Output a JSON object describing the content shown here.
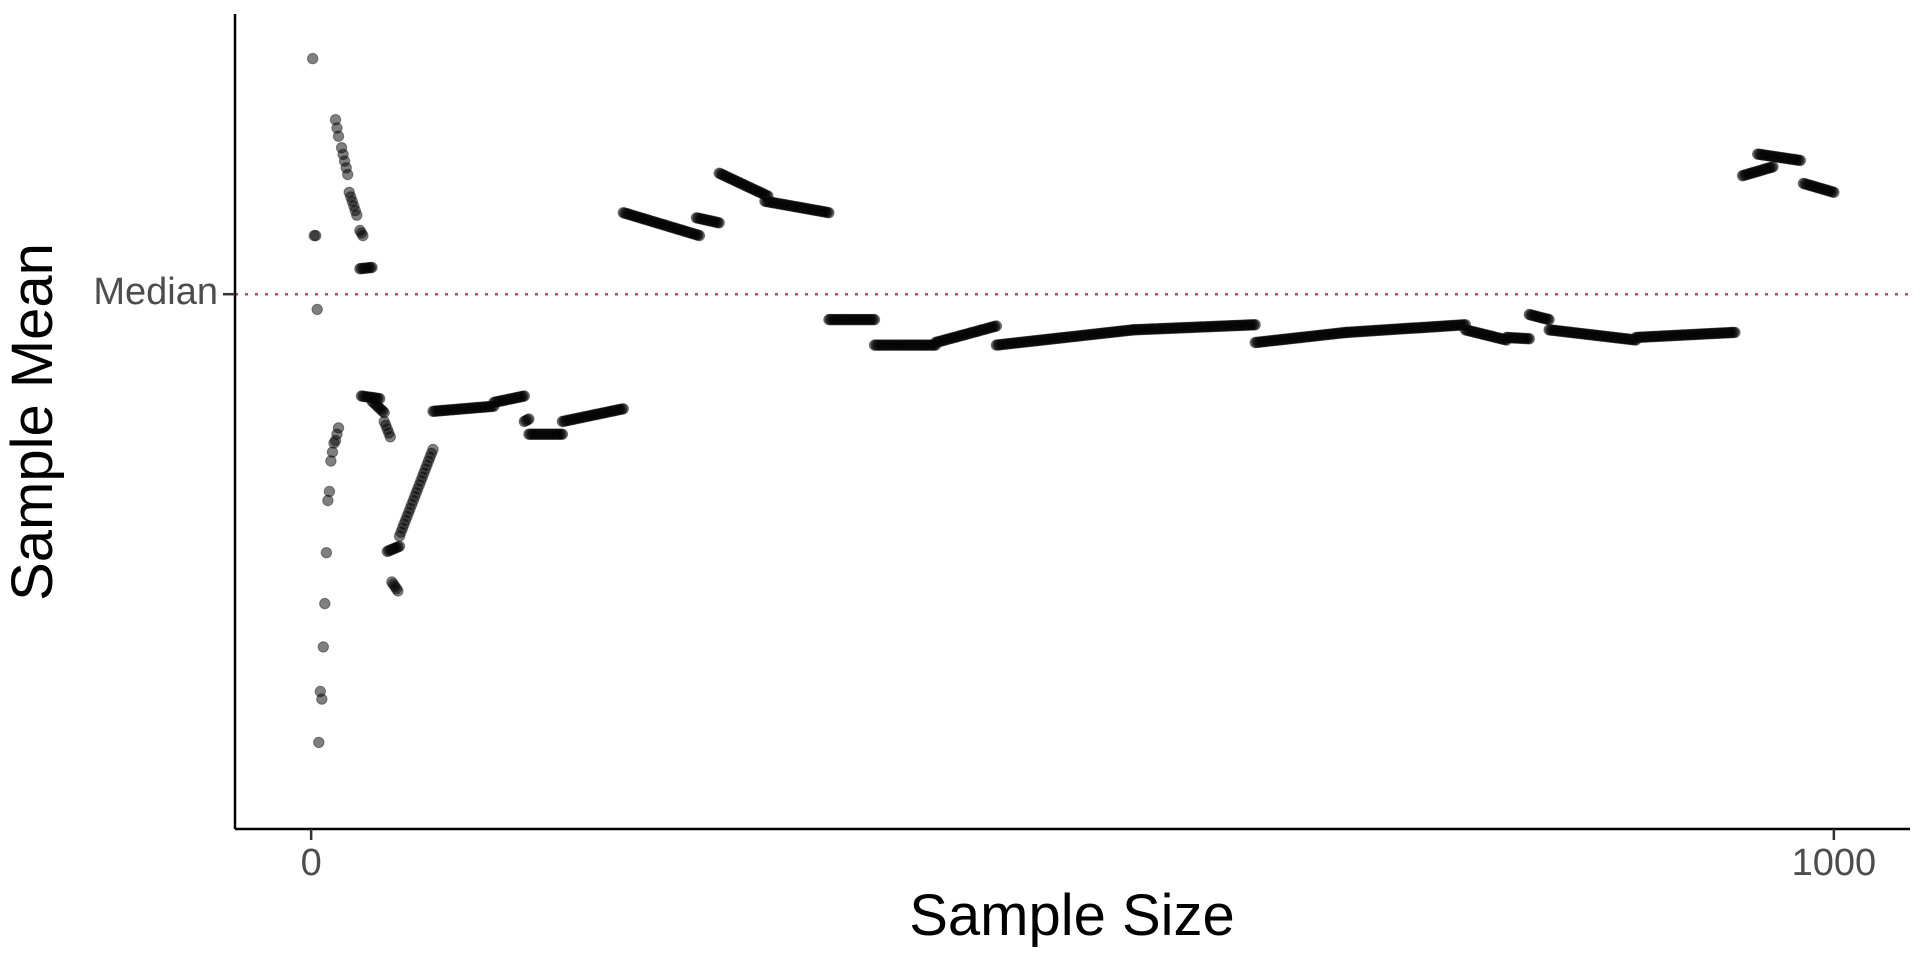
{
  "chart_data": {
    "type": "scatter",
    "title": "",
    "xlabel": "Sample Size",
    "ylabel": "Sample Mean",
    "xlim": [
      -50,
      1050
    ],
    "ylim": [
      -0.42,
      0.22
    ],
    "x_ticks": [
      0,
      1000
    ],
    "x_tick_labels": [
      "0",
      "1000"
    ],
    "y_reference": {
      "label": "Median",
      "value": 0.0,
      "color": "#c2456b",
      "style": "dotted"
    },
    "grid": false,
    "legend": "none",
    "point_color": "#000000",
    "point_opacity": 0.5,
    "segments": [
      {
        "n_start": 1,
        "n_end": 1,
        "y_start": 0.185,
        "y_end": 0.185
      },
      {
        "n_start": 2,
        "n_end": 3,
        "y_start": 0.046,
        "y_end": 0.046
      },
      {
        "n_start": 4,
        "n_end": 4,
        "y_start": -0.012,
        "y_end": -0.012
      },
      {
        "n_start": 5,
        "n_end": 5,
        "y_start": -0.352,
        "y_end": -0.352
      },
      {
        "n_start": 6,
        "n_end": 7,
        "y_start": -0.312,
        "y_end": -0.318
      },
      {
        "n_start": 8,
        "n_end": 8,
        "y_start": -0.277,
        "y_end": -0.277
      },
      {
        "n_start": 9,
        "n_end": 9,
        "y_start": -0.243,
        "y_end": -0.243
      },
      {
        "n_start": 10,
        "n_end": 10,
        "y_start": -0.203,
        "y_end": -0.203
      },
      {
        "n_start": 11,
        "n_end": 12,
        "y_start": -0.162,
        "y_end": -0.155
      },
      {
        "n_start": 13,
        "n_end": 15,
        "y_start": -0.131,
        "y_end": -0.117
      },
      {
        "n_start": 16,
        "n_end": 18,
        "y_start": -0.115,
        "y_end": -0.105
      },
      {
        "n_start": 16,
        "n_end": 18,
        "y_start": 0.137,
        "y_end": 0.124
      },
      {
        "n_start": 20,
        "n_end": 24,
        "y_start": 0.115,
        "y_end": 0.094
      },
      {
        "n_start": 25,
        "n_end": 30,
        "y_start": 0.08,
        "y_end": 0.062
      },
      {
        "n_start": 32,
        "n_end": 34,
        "y_start": 0.05,
        "y_end": 0.046
      },
      {
        "n_start": 32,
        "n_end": 40,
        "y_start": 0.02,
        "y_end": 0.021
      },
      {
        "n_start": 33,
        "n_end": 45,
        "y_start": -0.08,
        "y_end": -0.082
      },
      {
        "n_start": 40,
        "n_end": 48,
        "y_start": -0.084,
        "y_end": -0.093
      },
      {
        "n_start": 48,
        "n_end": 52,
        "y_start": -0.1,
        "y_end": -0.112
      },
      {
        "n_start": 50,
        "n_end": 58,
        "y_start": -0.202,
        "y_end": -0.198
      },
      {
        "n_start": 53,
        "n_end": 57,
        "y_start": -0.226,
        "y_end": -0.233
      },
      {
        "n_start": 58,
        "n_end": 80,
        "y_start": -0.19,
        "y_end": -0.122
      },
      {
        "n_start": 80,
        "n_end": 120,
        "y_start": -0.092,
        "y_end": -0.088
      },
      {
        "n_start": 120,
        "n_end": 140,
        "y_start": -0.085,
        "y_end": -0.08
      },
      {
        "n_start": 140,
        "n_end": 143,
        "y_start": -0.1,
        "y_end": -0.098
      },
      {
        "n_start": 143,
        "n_end": 165,
        "y_start": -0.11,
        "y_end": -0.11
      },
      {
        "n_start": 165,
        "n_end": 205,
        "y_start": -0.1,
        "y_end": -0.09
      },
      {
        "n_start": 205,
        "n_end": 255,
        "y_start": 0.064,
        "y_end": 0.046
      },
      {
        "n_start": 253,
        "n_end": 268,
        "y_start": 0.06,
        "y_end": 0.056
      },
      {
        "n_start": 268,
        "n_end": 300,
        "y_start": 0.095,
        "y_end": 0.077
      },
      {
        "n_start": 298,
        "n_end": 340,
        "y_start": 0.073,
        "y_end": 0.064
      },
      {
        "n_start": 340,
        "n_end": 370,
        "y_start": -0.02,
        "y_end": -0.02
      },
      {
        "n_start": 370,
        "n_end": 410,
        "y_start": -0.04,
        "y_end": -0.04
      },
      {
        "n_start": 410,
        "n_end": 450,
        "y_start": -0.038,
        "y_end": -0.025
      },
      {
        "n_start": 450,
        "n_end": 540,
        "y_start": -0.04,
        "y_end": -0.028
      },
      {
        "n_start": 540,
        "n_end": 620,
        "y_start": -0.028,
        "y_end": -0.024
      },
      {
        "n_start": 620,
        "n_end": 680,
        "y_start": -0.038,
        "y_end": -0.03
      },
      {
        "n_start": 680,
        "n_end": 758,
        "y_start": -0.03,
        "y_end": -0.024
      },
      {
        "n_start": 758,
        "n_end": 785,
        "y_start": -0.028,
        "y_end": -0.036
      },
      {
        "n_start": 785,
        "n_end": 800,
        "y_start": -0.034,
        "y_end": -0.035
      },
      {
        "n_start": 800,
        "n_end": 813,
        "y_start": -0.016,
        "y_end": -0.02
      },
      {
        "n_start": 813,
        "n_end": 870,
        "y_start": -0.028,
        "y_end": -0.036
      },
      {
        "n_start": 870,
        "n_end": 935,
        "y_start": -0.034,
        "y_end": -0.03
      },
      {
        "n_start": 940,
        "n_end": 960,
        "y_start": 0.093,
        "y_end": 0.1
      },
      {
        "n_start": 950,
        "n_end": 978,
        "y_start": 0.11,
        "y_end": 0.105
      },
      {
        "n_start": 980,
        "n_end": 1000,
        "y_start": 0.087,
        "y_end": 0.08
      }
    ]
  }
}
